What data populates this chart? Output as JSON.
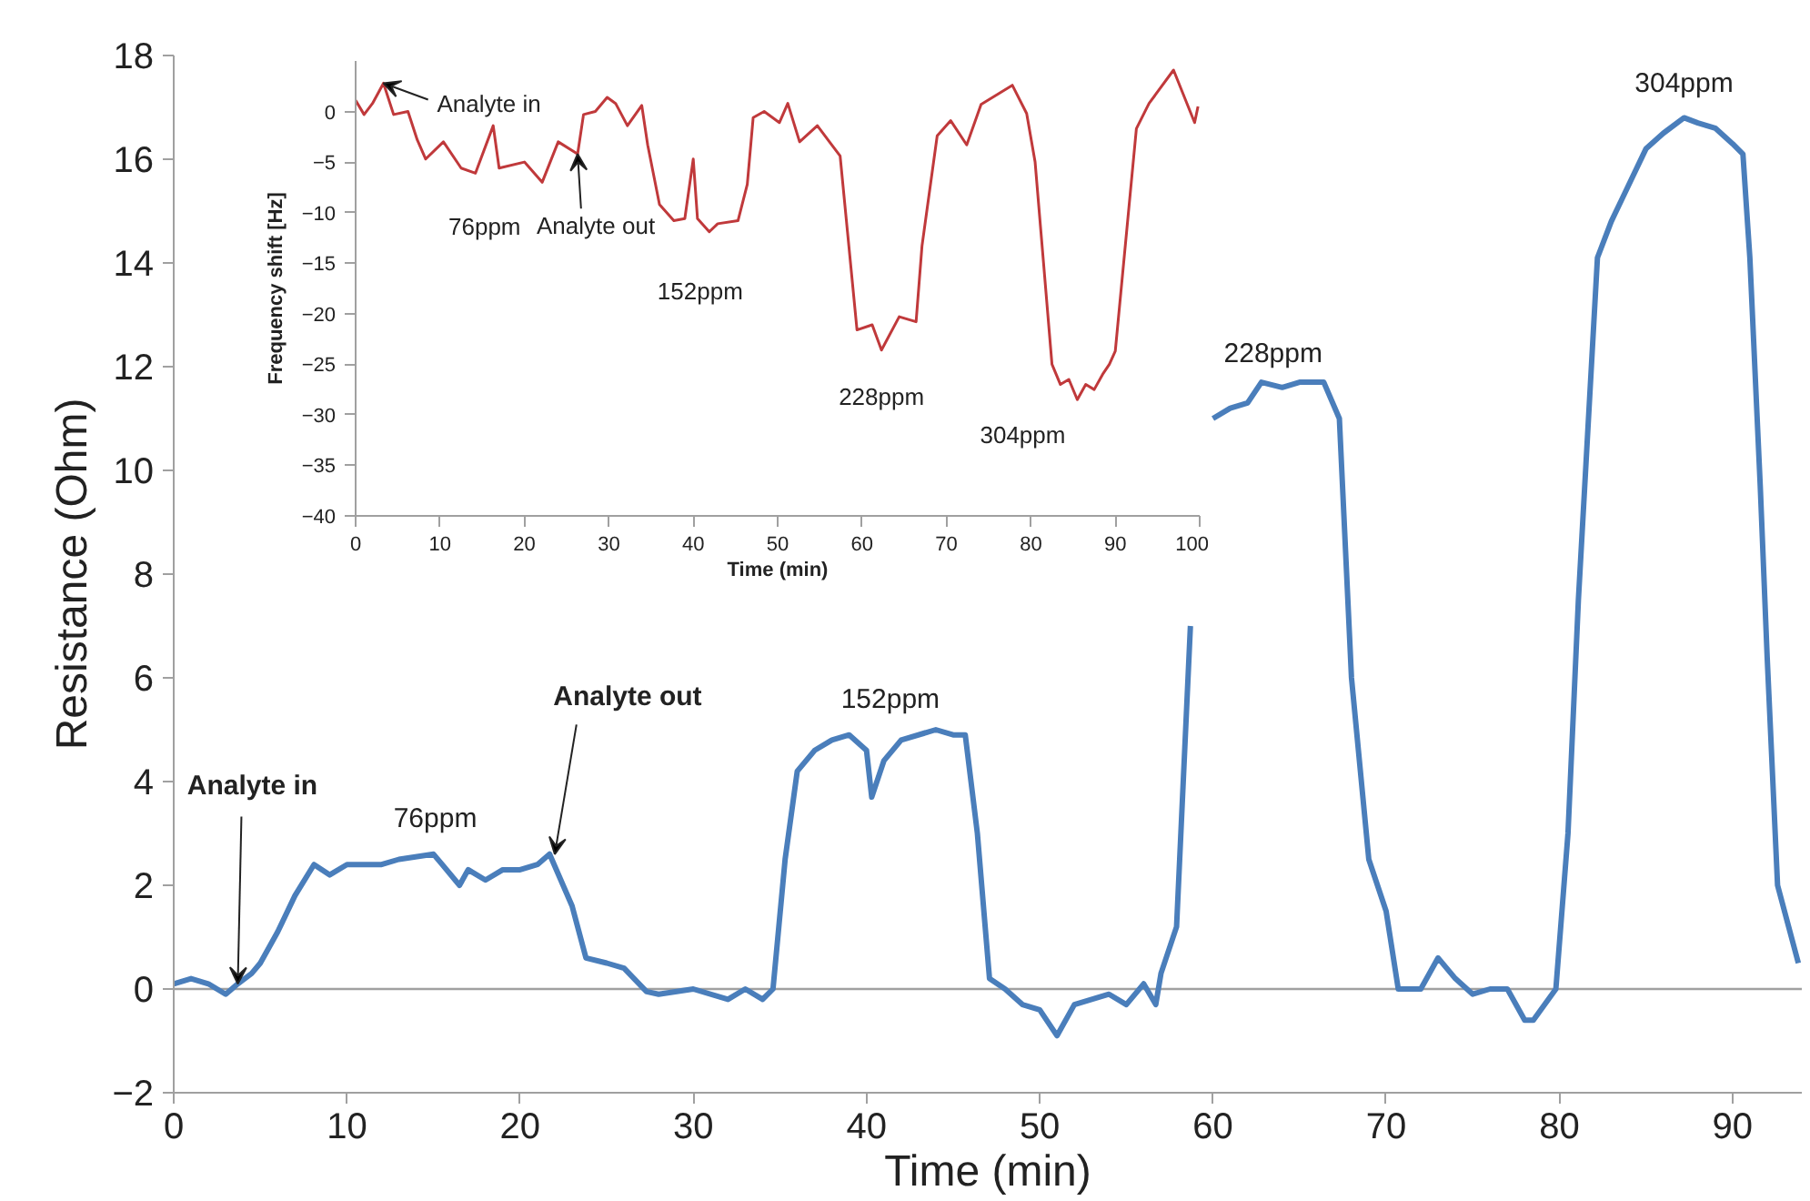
{
  "chart_data": [
    {
      "type": "line",
      "xlabel": "Time (min)",
      "ylabel": "Resistance (Ohm)",
      "xlim": [
        0,
        94
      ],
      "ylim": [
        -2,
        18
      ],
      "xticks": [
        0,
        10,
        20,
        30,
        40,
        50,
        60,
        70,
        80,
        90
      ],
      "yticks": [
        -2,
        0,
        2,
        4,
        6,
        8,
        10,
        12,
        14,
        16,
        18
      ],
      "grid": false,
      "ref_lines": [
        {
          "axis": "y",
          "value": 0,
          "color": "#a0a0a0"
        }
      ],
      "x": [
        0,
        1,
        2,
        3,
        3.7,
        4.5,
        5,
        6,
        7,
        8.1,
        9,
        10,
        12,
        13,
        15,
        15.5,
        16.5,
        17,
        18,
        19,
        20,
        21,
        21.7,
        23,
        23.8,
        25,
        26,
        27.3,
        28,
        30,
        32,
        33,
        34,
        34.6,
        35.3,
        36,
        37,
        38,
        39,
        40,
        40.3,
        41,
        42,
        44,
        45,
        45.7,
        46.4,
        47.1,
        48,
        49,
        50,
        51,
        52,
        54,
        55,
        56,
        56.7,
        57,
        57.9,
        58.7,
        59.3,
        60,
        61,
        62,
        62.8,
        64,
        65,
        66.4,
        67.3,
        68,
        69,
        70,
        70.7,
        72,
        73,
        74,
        75,
        76,
        77,
        78,
        78.5,
        79.8,
        80.5,
        81.1,
        82.2,
        83,
        84,
        85,
        86,
        87.2,
        88,
        89,
        90,
        90.6,
        91,
        91.6,
        92,
        92.6,
        93.8
      ],
      "series": [
        {
          "color": "#4a7ebb",
          "values": [
            0.1,
            0.2,
            0.1,
            -0.1,
            0.1,
            0.3,
            0.5,
            1.1,
            1.8,
            2.4,
            2.2,
            2.4,
            2.4,
            2.5,
            2.6,
            2.4,
            2.0,
            2.3,
            2.1,
            2.3,
            2.3,
            2.4,
            2.6,
            1.6,
            0.6,
            0.5,
            0.4,
            -0.05,
            -0.1,
            0.0,
            -0.2,
            0.0,
            -0.2,
            0.0,
            2.5,
            4.2,
            4.6,
            4.8,
            4.9,
            4.6,
            3.7,
            4.4,
            4.8,
            5.0,
            4.9,
            4.9,
            3.0,
            0.2,
            0.0,
            -0.3,
            -0.4,
            -0.9,
            -0.3,
            -0.1,
            -0.3,
            0.1,
            -0.3,
            0.3,
            1.2,
            7.0,
            null,
            11.0,
            11.2,
            11.3,
            11.7,
            11.6,
            11.7,
            11.7,
            11.0,
            6.0,
            2.5,
            1.5,
            0.0,
            0.0,
            0.6,
            0.2,
            -0.1,
            0.0,
            0.0,
            -0.6,
            -0.6,
            0.0,
            3.0,
            7.5,
            14.1,
            14.8,
            15.5,
            16.2,
            16.5,
            16.8,
            16.7,
            16.6,
            16.3,
            16.1,
            14.1,
            9.7,
            6.4,
            2.0,
            0.5
          ]
        }
      ],
      "annotations": [
        {
          "text": "Analyte in",
          "x": 3.7,
          "y": 0.1
        },
        {
          "text": "76ppm",
          "x": 13,
          "y": 2.5
        },
        {
          "text": "Analyte out",
          "x": 22,
          "y": 2.6
        },
        {
          "text": "152ppm",
          "x": 44,
          "y": 5.0
        },
        {
          "text": "228ppm",
          "x": 64,
          "y": 11.6
        },
        {
          "text": "304ppm",
          "x": 87.2,
          "y": 16.8
        }
      ]
    },
    {
      "type": "line",
      "xlabel": "Time (min)",
      "ylabel": "Frequency shift [Hz]",
      "xlim": [
        0,
        100
      ],
      "ylim": [
        -40,
        5
      ],
      "xticks": [
        0,
        10,
        20,
        30,
        40,
        50,
        60,
        70,
        80,
        90,
        100
      ],
      "yticks": [
        -40,
        -35,
        -30,
        -25,
        -20,
        -15,
        -10,
        -5,
        0
      ],
      "grid": false,
      "x": [
        0,
        1,
        2,
        3.3,
        4.5,
        6.2,
        7.3,
        8.3,
        10.4,
        12.5,
        14.2,
        16.3,
        17,
        20,
        22.1,
        24,
        26.3,
        27,
        28.4,
        29.8,
        30.8,
        32.2,
        33.9,
        34.6,
        36,
        37.7,
        39,
        40,
        40.5,
        41.9,
        42.9,
        45.3,
        46.4,
        47.1,
        48.4,
        50.2,
        51.2,
        52.6,
        54.7,
        56.4,
        57.4,
        59.4,
        61.2,
        62.3,
        64.4,
        66.4,
        67.1,
        68.9,
        70.5,
        72.4,
        74.1,
        77.8,
        79.5,
        80.5,
        81.5,
        82.5,
        83.5,
        84.5,
        85.5,
        86.5,
        87.5,
        88.5,
        89.3,
        90,
        92.5,
        94,
        96.9,
        99.4,
        99.8
      ],
      "series": [
        {
          "color": "#c0393b",
          "values": [
            1.1,
            -0.3,
            0.8,
            2.8,
            -0.3,
            0.0,
            -2.8,
            -4.7,
            -3.0,
            -5.6,
            -6.1,
            -1.4,
            -5.6,
            -5.0,
            -7.0,
            -3.0,
            -4.2,
            -0.3,
            0.0,
            1.4,
            0.8,
            -1.4,
            0.6,
            -3.3,
            -9.2,
            -10.8,
            -10.6,
            -4.7,
            -10.6,
            -11.9,
            -11.1,
            -10.8,
            -7.2,
            -0.6,
            0.0,
            -1.1,
            0.8,
            -3.0,
            -1.4,
            -3.3,
            -4.4,
            -21.6,
            -21.1,
            -23.6,
            -20.3,
            -20.8,
            -13.3,
            -2.4,
            -0.9,
            -3.3,
            0.7,
            2.6,
            -0.2,
            -5.0,
            -15.0,
            -25.0,
            -27.0,
            -26.5,
            -28.5,
            -27.0,
            -27.5,
            -26.0,
            -25.0,
            -23.7,
            -1.7,
            0.8,
            4.1,
            -1.1,
            0.5
          ]
        }
      ],
      "annotations": [
        {
          "text": "Analyte in",
          "x": 3.3,
          "y": 2.8
        },
        {
          "text": "76ppm",
          "x": 14.2,
          "y": -6.1
        },
        {
          "text": "Analyte out",
          "x": 26.3,
          "y": -4.2
        },
        {
          "text": "152ppm",
          "x": 41.9,
          "y": -11.9
        },
        {
          "text": "228ppm",
          "x": 62.3,
          "y": -23.6
        },
        {
          "text": "304ppm",
          "x": 85.5,
          "y": -28.5
        }
      ]
    }
  ]
}
